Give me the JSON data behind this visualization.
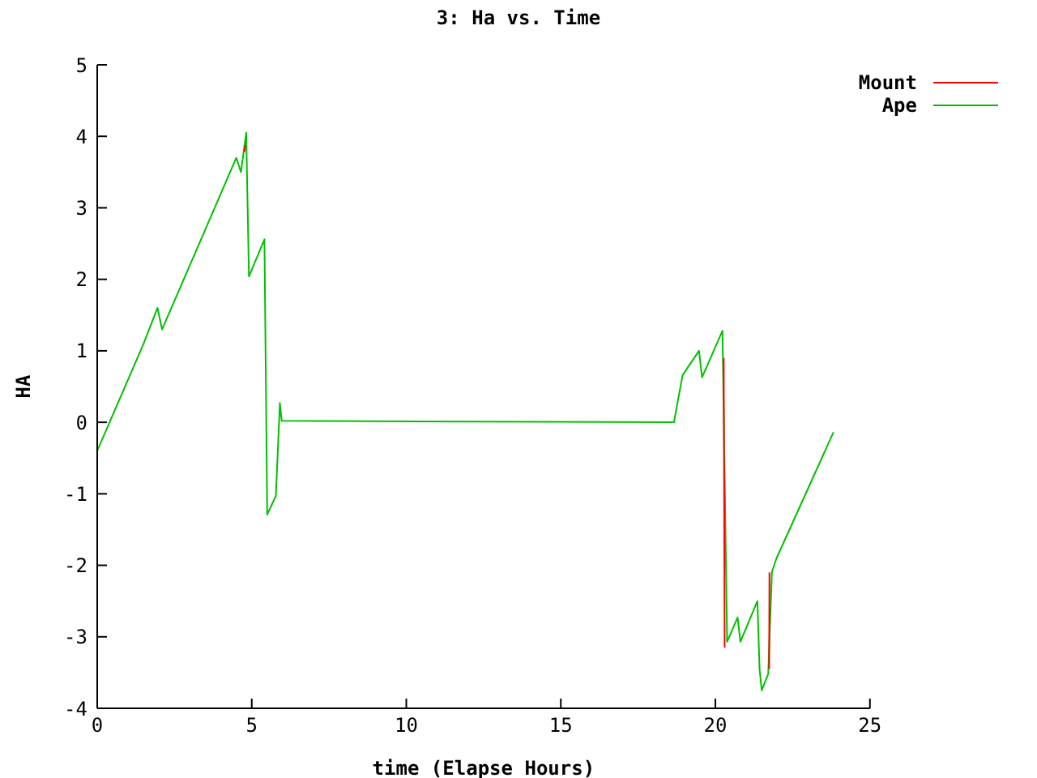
{
  "chart_data": {
    "type": "line",
    "title": "3: Ha vs. Time",
    "xlabel": "time (Elapse Hours)",
    "ylabel": "HA",
    "xlim": [
      0,
      25
    ],
    "xticks": [
      0,
      5,
      10,
      15,
      20,
      25
    ],
    "ylim": [
      -4,
      5
    ],
    "yticks": [
      -4,
      -3,
      -2,
      -1,
      0,
      1,
      2,
      3,
      4,
      5
    ],
    "grid": false,
    "legend": "top right",
    "marker": "none",
    "line_style": "solid",
    "series": [
      {
        "name": "Ape",
        "color": "#00c000",
        "x": [
          0,
          1.5,
          1.95,
          2.1,
          4.5,
          4.65,
          4.82,
          4.91,
          5.41,
          5.5,
          5.78,
          5.91,
          5.97,
          18.66,
          18.94,
          19.47,
          19.57,
          20.23,
          20.38,
          20.72,
          20.81,
          21.36,
          21.43,
          21.5,
          21.71,
          21.83,
          21.98,
          23.82
        ],
        "values": [
          -0.4,
          1.1,
          1.6,
          1.3,
          3.7,
          3.5,
          4.05,
          2.04,
          2.56,
          -1.29,
          -1.03,
          0.27,
          0.02,
          0.0,
          0.66,
          1.0,
          0.63,
          1.28,
          -3.07,
          -2.73,
          -3.07,
          -2.5,
          -3.45,
          -3.75,
          -3.52,
          -2.09,
          -1.9,
          -0.14
        ]
      },
      {
        "name": "Mount",
        "color": "#ff0000",
        "x": [
          4.76,
          4.79,
          null,
          20.27,
          20.3,
          null,
          21.74,
          21.75
        ],
        "values": [
          3.78,
          3.88,
          null,
          0.9,
          -3.15,
          null,
          -3.45,
          -2.1
        ]
      }
    ]
  }
}
